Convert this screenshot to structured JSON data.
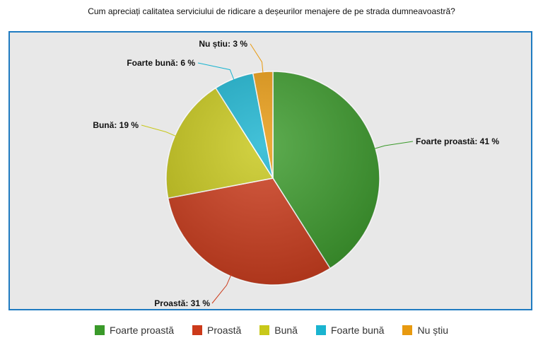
{
  "chart_data": {
    "type": "pie",
    "title": "Cum apreciați calitatea serviciului de ridicare a deșeurilor menajere de pe strada dumneavoastră?",
    "unit": "%",
    "legend_position": "bottom",
    "slices": [
      {
        "label": "Foarte proastă",
        "value": 41,
        "color": "#3a9a2a",
        "display": "Foarte proastă: 41 %"
      },
      {
        "label": "Proastă",
        "value": 31,
        "color": "#cc3a1a",
        "display": "Proastă: 31 %"
      },
      {
        "label": "Bună",
        "value": 19,
        "color": "#c8c81a",
        "display": "Bună: 19 %"
      },
      {
        "label": "Foarte bună",
        "value": 6,
        "color": "#1ab4d0",
        "display": "Foarte bună: 6 %"
      },
      {
        "label": "Nu știu",
        "value": 3,
        "color": "#e89a10",
        "display": "Nu știu: 3 %"
      }
    ]
  }
}
